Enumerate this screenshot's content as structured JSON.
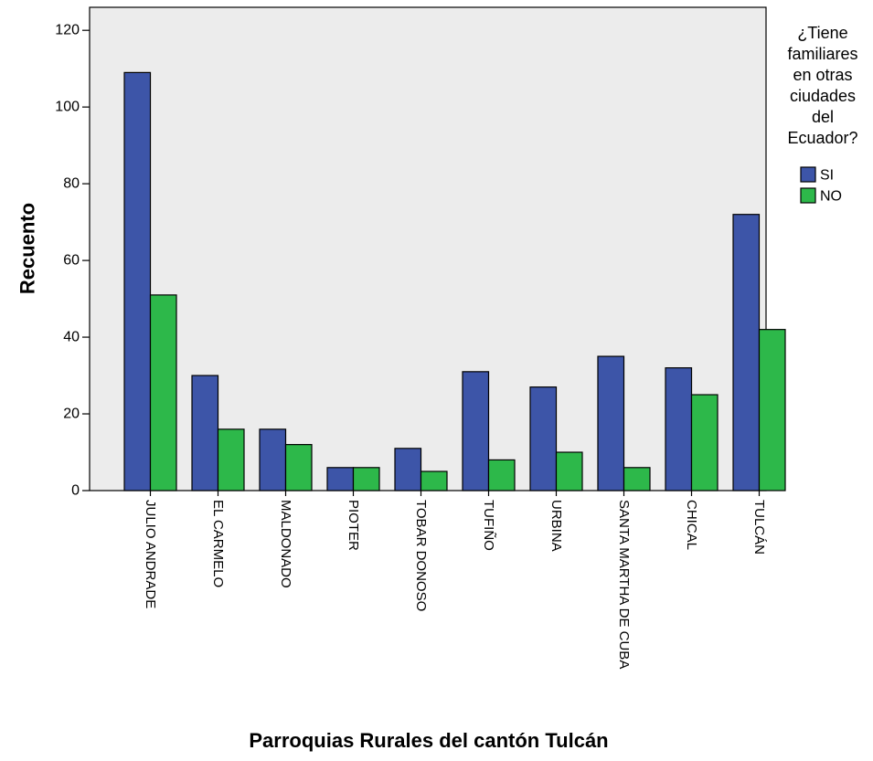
{
  "chart_data": {
    "type": "bar",
    "title": "",
    "xlabel": "Parroquias Rurales del cantón Tulcán",
    "ylabel": "Recuento",
    "ylim": [
      0,
      126
    ],
    "yticks": [
      0,
      20,
      40,
      60,
      80,
      100,
      120
    ],
    "grid": false,
    "legend_position": "right",
    "legend_title_lines": [
      "¿Tiene",
      "familiares",
      "en otras",
      "ciudades",
      "del",
      "Ecuador?"
    ],
    "categories": [
      "JULIO ANDRADE",
      "EL CARMELO",
      "MALDONADO",
      "PIOTER",
      "TOBAR DONOSO",
      "TUFIÑO",
      "URBINA",
      "SANTA MARTHA DE CUBA",
      "CHICAL",
      "TULCÁN"
    ],
    "series": [
      {
        "name": "SI",
        "color": "#3d55a8",
        "values": [
          109,
          30,
          16,
          6,
          11,
          31,
          27,
          35,
          32,
          72
        ]
      },
      {
        "name": "NO",
        "color": "#2db84a",
        "values": [
          51,
          16,
          12,
          6,
          5,
          8,
          10,
          6,
          25,
          42
        ]
      }
    ],
    "plot_background": "#ececec"
  }
}
